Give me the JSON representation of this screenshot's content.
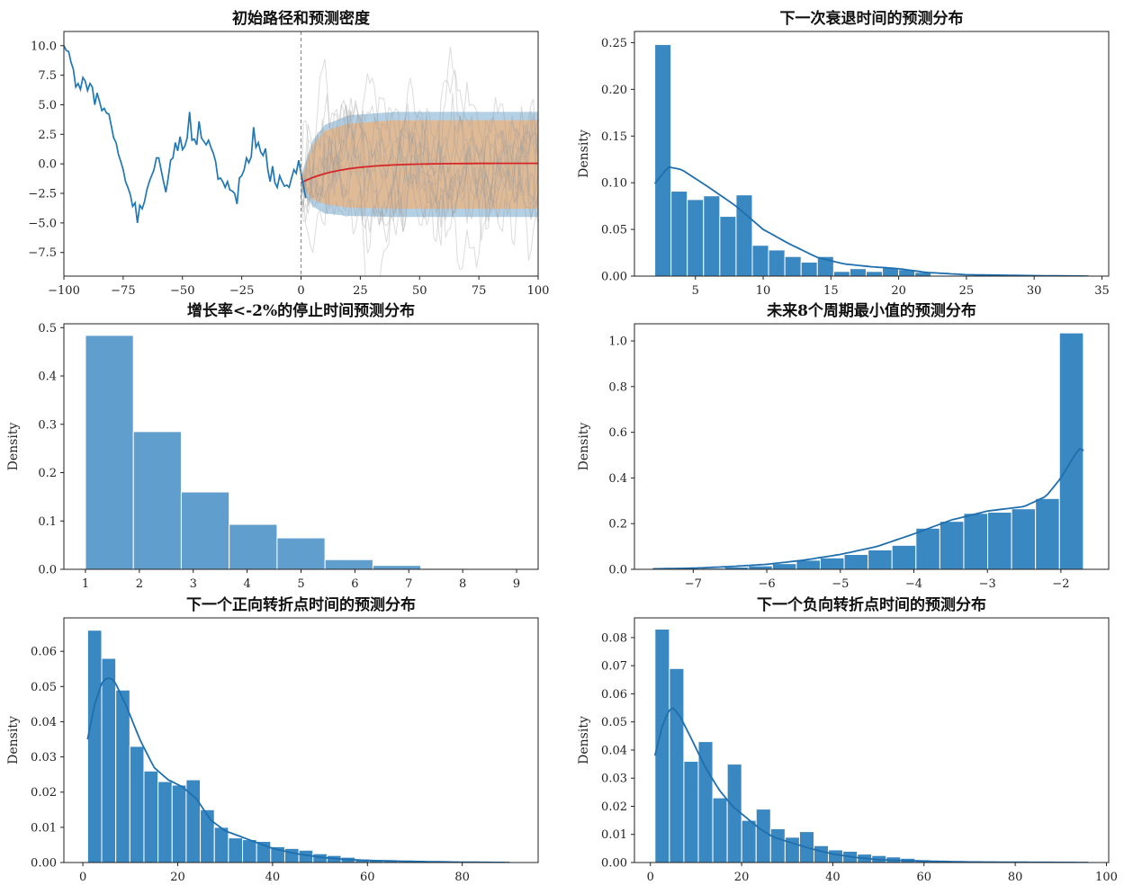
{
  "chart_data": [
    {
      "id": "p1",
      "type": "line",
      "title": "初始路径和预测密度",
      "xlim": [
        -100,
        100
      ],
      "ylim": [
        -9.5,
        11.2
      ],
      "xticks": [
        -100,
        -75,
        -50,
        -25,
        0,
        25,
        50,
        75,
        100
      ],
      "yticks": [
        -7.5,
        -5.0,
        -2.5,
        0.0,
        2.5,
        5.0,
        7.5,
        10.0
      ],
      "ytick_labels": [
        "−7.5",
        "−5.0",
        "−2.5",
        "0.0",
        "2.5",
        "5.0",
        "7.5",
        "10.0"
      ],
      "xtick_labels": [
        "−100",
        "−75",
        "−50",
        "−25",
        "0",
        "25",
        "50",
        "75",
        "100"
      ],
      "vline_x": 0,
      "colors": {
        "path": "#1f77b4",
        "mean": "#d62728",
        "outer_band": "#a6c8e0",
        "inner_band": "#e3b78e",
        "sims": "#9a9a9a",
        "vline": "#888888"
      },
      "history": {
        "x_start": -100,
        "values": [
          10.0,
          9.6,
          9.5,
          8.6,
          8.0,
          6.5,
          6.8,
          6.3,
          7.3,
          7.0,
          6.2,
          6.8,
          6.5,
          5.0,
          6.0,
          5.3,
          4.5,
          4.7,
          4.3,
          4.2,
          3.2,
          2.2,
          1.8,
          0.8,
          0.2,
          -0.5,
          -1.5,
          -2.0,
          -2.6,
          -3.6,
          -3.3,
          -5.0,
          -3.5,
          -3.8,
          -3.2,
          -2.2,
          -1.5,
          -1.0,
          -0.5,
          0.5,
          0.5,
          -0.5,
          -1.5,
          -2.4,
          -1.2,
          0.3,
          0.5,
          1.8,
          1.1,
          2.3,
          1.2,
          1.5,
          2.2,
          4.4,
          2.0,
          2.1,
          1.6,
          3.6,
          2.2,
          1.9,
          1.6,
          2.0,
          1.4,
          0.9,
          0.2,
          -1.3,
          -1.2,
          -1.5,
          -2.0,
          -1.5,
          -2.2,
          -2.3,
          -2.5,
          -3.4,
          -1.2,
          -1.0,
          -0.5,
          0.5,
          0.1,
          0.6,
          3.1,
          1.4,
          1.8,
          1.0,
          0.7,
          1.3,
          -0.5,
          -1.5,
          -0.2,
          -1.6,
          -2.0,
          -1.0,
          -1.5,
          -1.9,
          -1.8,
          -2.0,
          -1.2,
          -0.5,
          -0.8,
          0.3,
          -0.8,
          -1.8,
          -2.9
        ]
      },
      "mean": {
        "start": -1.6,
        "end": 0.05,
        "tau": 16
      },
      "bands": {
        "outer": [
          [
            0,
            -2.2,
            -1.0
          ],
          [
            5,
            -3.6,
            2.0
          ],
          [
            10,
            -4.2,
            3.3
          ],
          [
            20,
            -4.4,
            4.1
          ],
          [
            40,
            -4.5,
            4.4
          ],
          [
            100,
            -4.5,
            4.4
          ]
        ],
        "inner": [
          [
            0,
            -1.9,
            -1.3
          ],
          [
            5,
            -3.0,
            1.6
          ],
          [
            10,
            -3.4,
            2.8
          ],
          [
            20,
            -3.7,
            3.4
          ],
          [
            40,
            -3.8,
            3.7
          ],
          [
            100,
            -3.8,
            3.7
          ]
        ]
      },
      "n_sims": 12
    },
    {
      "id": "p2",
      "type": "bar",
      "title": "下一次衰退时间的预测分布",
      "ylabel": "Density",
      "xlim": [
        0.5,
        35.5
      ],
      "ylim": [
        0,
        0.262
      ],
      "xticks": [
        5,
        10,
        15,
        20,
        25,
        30,
        35
      ],
      "yticks": [
        0.0,
        0.05,
        0.1,
        0.15,
        0.2,
        0.25
      ],
      "ytick_labels": [
        "0.00",
        "0.05",
        "0.10",
        "0.15",
        "0.20",
        "0.25"
      ],
      "bin_start": 2,
      "bin_width": 1.2,
      "values": [
        0.248,
        0.091,
        0.082,
        0.086,
        0.064,
        0.087,
        0.033,
        0.028,
        0.021,
        0.015,
        0.021,
        0.005,
        0.008,
        0.005,
        0.009,
        0.007,
        0.004,
        0.001,
        0.001,
        0.001,
        0.0,
        0.0,
        0.0,
        0.0,
        0.0,
        0.0
      ],
      "kde": [
        [
          2,
          0.099
        ],
        [
          3,
          0.117
        ],
        [
          4,
          0.114
        ],
        [
          6,
          0.095
        ],
        [
          8,
          0.075
        ],
        [
          10,
          0.05
        ],
        [
          12,
          0.034
        ],
        [
          14,
          0.02
        ],
        [
          16,
          0.013
        ],
        [
          18,
          0.01
        ],
        [
          20,
          0.008
        ],
        [
          22,
          0.004
        ],
        [
          25,
          0.0015
        ],
        [
          30,
          0.0005
        ],
        [
          34,
          0.0
        ]
      ],
      "color": "#3a88c1",
      "kde_color": "#1f6fae"
    },
    {
      "id": "p3",
      "type": "bar",
      "title": "增长率<-2%的停止时间预测分布",
      "ylabel": "Density",
      "xlim": [
        0.6,
        9.4
      ],
      "ylim": [
        0,
        0.508
      ],
      "xticks": [
        1,
        2,
        3,
        4,
        5,
        6,
        7,
        8,
        9
      ],
      "yticks": [
        0.0,
        0.1,
        0.2,
        0.3,
        0.4,
        0.5
      ],
      "ytick_labels": [
        "0.0",
        "0.1",
        "0.2",
        "0.3",
        "0.4",
        "0.5"
      ],
      "bin_start": 1,
      "bin_width": 0.889,
      "values": [
        0.484,
        0.285,
        0.16,
        0.093,
        0.065,
        0.02,
        0.008,
        0.002,
        0.0
      ],
      "color": "#5f9ecd"
    },
    {
      "id": "p4",
      "type": "bar",
      "title": "未来8个周期最小值的预测分布",
      "ylabel": "Density",
      "xlim": [
        -7.8,
        -1.35
      ],
      "ylim": [
        0,
        1.075
      ],
      "xticks": [
        -7,
        -6,
        -5,
        -4,
        -3,
        -2
      ],
      "xtick_labels": [
        "−7",
        "−6",
        "−5",
        "−4",
        "−3",
        "−2"
      ],
      "yticks": [
        0.0,
        0.2,
        0.4,
        0.6,
        0.8,
        1.0
      ],
      "ytick_labels": [
        "0.0",
        "0.2",
        "0.4",
        "0.6",
        "0.8",
        "1.0"
      ],
      "bin_start": -7.55,
      "bin_width": 0.3253,
      "values": [
        0.0,
        0.002,
        0.005,
        0.01,
        0.015,
        0.025,
        0.04,
        0.05,
        0.065,
        0.085,
        0.105,
        0.18,
        0.21,
        0.245,
        0.25,
        0.265,
        0.31,
        1.035
      ],
      "kde": [
        [
          -7.55,
          0.002
        ],
        [
          -7.0,
          0.005
        ],
        [
          -6.5,
          0.012
        ],
        [
          -6.0,
          0.022
        ],
        [
          -5.5,
          0.04
        ],
        [
          -5.0,
          0.065
        ],
        [
          -4.5,
          0.1
        ],
        [
          -4.0,
          0.155
        ],
        [
          -3.5,
          0.215
        ],
        [
          -3.0,
          0.255
        ],
        [
          -2.5,
          0.275
        ],
        [
          -2.2,
          0.32
        ],
        [
          -2.0,
          0.4
        ],
        [
          -1.85,
          0.48
        ],
        [
          -1.75,
          0.53
        ],
        [
          -1.69,
          0.52
        ]
      ],
      "color": "#3a88c1",
      "kde_color": "#1f6fae"
    },
    {
      "id": "p5",
      "type": "bar",
      "title": "下一个正向转折点时间的预测分布",
      "ylabel": "Density",
      "xlim": [
        -4,
        96
      ],
      "ylim": [
        0,
        0.0695
      ],
      "xticks": [
        0,
        20,
        40,
        60,
        80
      ],
      "yticks": [
        0.0,
        0.01,
        0.02,
        0.03,
        0.04,
        0.05,
        0.06
      ],
      "ytick_labels": [
        "0.00",
        "0.01",
        "0.02",
        "0.03",
        "0.04",
        "0.05",
        "0.06"
      ],
      "bin_start": 1,
      "bin_width": 2.97,
      "values": [
        0.066,
        0.058,
        0.049,
        0.033,
        0.026,
        0.023,
        0.022,
        0.0235,
        0.015,
        0.01,
        0.007,
        0.0065,
        0.006,
        0.0045,
        0.004,
        0.0035,
        0.0025,
        0.002,
        0.0015,
        0.001,
        0.0008,
        0.0005,
        0.0003,
        0.0002,
        0.0001,
        0.0001,
        0.0001,
        0.0001,
        0.0,
        0.0
      ],
      "kde": [
        [
          1,
          0.035
        ],
        [
          2.5,
          0.045
        ],
        [
          4,
          0.051
        ],
        [
          5,
          0.0525
        ],
        [
          6.5,
          0.052
        ],
        [
          9,
          0.045
        ],
        [
          12,
          0.035
        ],
        [
          15,
          0.027
        ],
        [
          18,
          0.0235
        ],
        [
          21,
          0.0215
        ],
        [
          24,
          0.018
        ],
        [
          27,
          0.012
        ],
        [
          30,
          0.009
        ],
        [
          35,
          0.0065
        ],
        [
          40,
          0.004
        ],
        [
          45,
          0.0025
        ],
        [
          50,
          0.0015
        ],
        [
          55,
          0.0009
        ],
        [
          60,
          0.0006
        ],
        [
          70,
          0.0003
        ],
        [
          80,
          0.0001
        ],
        [
          90,
          0.0
        ]
      ],
      "color": "#3a88c1",
      "kde_color": "#1f6fae"
    },
    {
      "id": "p6",
      "type": "bar",
      "title": "下一个负向转折点时间的预测分布",
      "ylabel": "Density",
      "xlim": [
        -3.5,
        100.5
      ],
      "ylim": [
        0,
        0.087
      ],
      "xticks": [
        0,
        20,
        40,
        60,
        80,
        100
      ],
      "yticks": [
        0.0,
        0.01,
        0.02,
        0.03,
        0.04,
        0.05,
        0.06,
        0.07,
        0.08
      ],
      "ytick_labels": [
        "0.00",
        "0.01",
        "0.02",
        "0.03",
        "0.04",
        "0.05",
        "0.06",
        "0.07",
        "0.08"
      ],
      "bin_start": 1,
      "bin_width": 3.17,
      "values": [
        0.083,
        0.069,
        0.036,
        0.043,
        0.023,
        0.035,
        0.015,
        0.019,
        0.012,
        0.009,
        0.011,
        0.006,
        0.0045,
        0.004,
        0.003,
        0.0025,
        0.002,
        0.0015,
        0.001,
        0.0008,
        0.0005,
        0.0003,
        0.0002,
        0.0001,
        0.0001,
        0.0,
        0.0,
        0.0,
        0.0,
        0.0
      ],
      "kde": [
        [
          1,
          0.038
        ],
        [
          2.5,
          0.048
        ],
        [
          4,
          0.054
        ],
        [
          5,
          0.055
        ],
        [
          6.5,
          0.052
        ],
        [
          9,
          0.044
        ],
        [
          12,
          0.034
        ],
        [
          15,
          0.026
        ],
        [
          18,
          0.02
        ],
        [
          21,
          0.016
        ],
        [
          24,
          0.012
        ],
        [
          27,
          0.009
        ],
        [
          30,
          0.0075
        ],
        [
          35,
          0.005
        ],
        [
          40,
          0.003
        ],
        [
          45,
          0.0018
        ],
        [
          50,
          0.001
        ],
        [
          60,
          0.0005
        ],
        [
          70,
          0.0002
        ],
        [
          80,
          0.0001
        ],
        [
          96,
          0.0
        ]
      ],
      "color": "#3a88c1",
      "kde_color": "#1f6fae"
    }
  ]
}
